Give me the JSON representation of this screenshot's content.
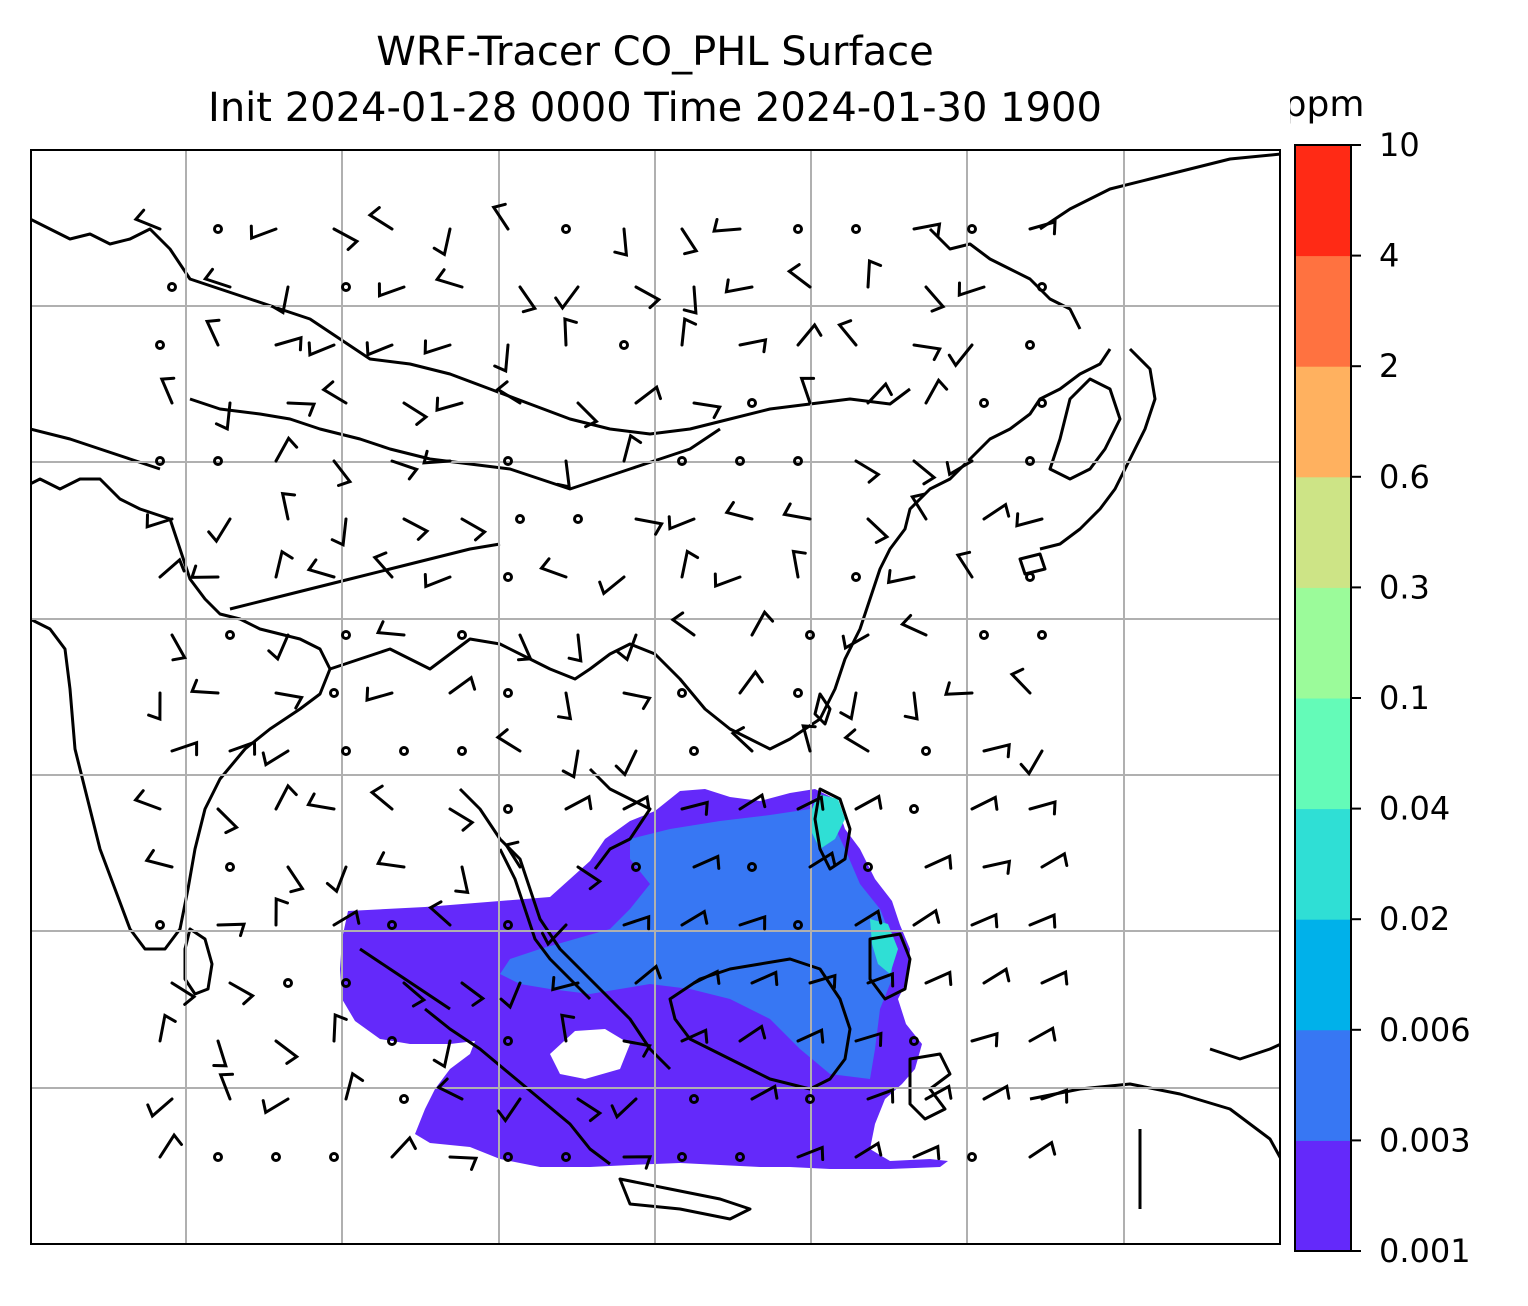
{
  "title_line1": "WRF-Tracer CO_PHL Surface",
  "title_line2": "Init 2024-01-28 0000 Time 2024-01-30 1900",
  "colorbar": {
    "unit": "ppm",
    "levels": [
      "0.001",
      "0.003",
      "0.006",
      "0.02",
      "0.04",
      "0.1",
      "0.3",
      "0.6",
      "2",
      "4",
      "10"
    ],
    "colors": [
      "#6429fa",
      "#3777f3",
      "#00b1ea",
      "#2fdfd5",
      "#64fbb8",
      "#9bfb9a",
      "#cde486",
      "#ffb15f",
      "#ff7240",
      "#ff2a15"
    ]
  },
  "map": {
    "gridlines": true,
    "fill_color": "#6429fa",
    "fill_color2": "#3777f3",
    "fill_color3": "#2fdfd5"
  }
}
